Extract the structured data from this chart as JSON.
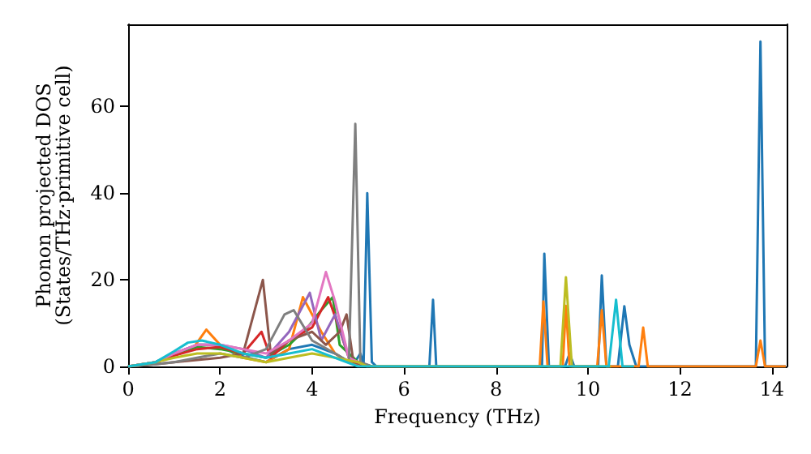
{
  "chart_data": {
    "type": "line",
    "xlabel": "Frequency (THz)",
    "ylabel": "Phonon projected DOS\n(States/THz·primitive cell)",
    "xlim": [
      0,
      14.32
    ],
    "xticks": [
      0,
      2,
      4,
      6,
      8,
      10,
      12,
      14
    ],
    "ylim": [
      0,
      79
    ],
    "yticks": [
      0,
      20,
      40,
      60
    ],
    "grid": false,
    "marker": "none",
    "line_style": "solid",
    "series": [
      {
        "color": "#1f77b4",
        "x": [
          0,
          0.5,
          1,
          1.5,
          2,
          2.3,
          2.6,
          3,
          3.5,
          4,
          4.5,
          4.9,
          5.05,
          5.12,
          5.2,
          5.3,
          5.4,
          6.55,
          6.63,
          6.7,
          9,
          9.05,
          9.15,
          9.5,
          9.6,
          9.7,
          10.22,
          10.3,
          10.4,
          10.65,
          10.79,
          10.9,
          11.05,
          13.65,
          13.75,
          13.85,
          14.3
        ],
        "values": [
          0,
          0.5,
          3,
          5,
          5,
          3,
          2,
          1,
          4,
          5,
          3,
          0.5,
          3,
          0.5,
          40,
          1,
          0,
          0,
          15.4,
          0,
          0,
          26,
          0,
          0,
          3,
          0,
          0,
          21,
          0,
          0,
          13.9,
          5,
          0,
          0,
          75,
          0,
          0
        ]
      },
      {
        "color": "#ff7f0e",
        "x": [
          0,
          0.5,
          1,
          1.4,
          1.7,
          2,
          2.5,
          3,
          3.5,
          3.8,
          4.2,
          4.5,
          4.8,
          5.3,
          8.95,
          9.03,
          9.12,
          9.45,
          9.52,
          9.6,
          10.2,
          10.3,
          10.4,
          11.1,
          11.2,
          11.3,
          13.65,
          13.75,
          13.85,
          14.3
        ],
        "values": [
          0,
          0.5,
          2.5,
          4,
          8.5,
          5,
          2,
          1,
          4,
          16,
          8,
          3,
          1,
          0,
          0,
          15,
          0,
          0,
          14,
          0,
          0,
          13,
          0,
          0,
          9,
          0,
          0,
          6,
          0,
          0
        ]
      },
      {
        "color": "#2ca02c",
        "x": [
          0,
          0.6,
          1,
          1.5,
          2,
          2.5,
          3,
          3.5,
          3.9,
          4.2,
          4.45,
          4.6,
          5,
          5.3
        ],
        "values": [
          0,
          1,
          3,
          4.5,
          4,
          3,
          2,
          5,
          9,
          13,
          16,
          5,
          1,
          0
        ]
      },
      {
        "color": "#d62728",
        "x": [
          0,
          0.6,
          1,
          1.5,
          2,
          2.5,
          2.9,
          3.1,
          3.5,
          4,
          4.35,
          4.55,
          4.8,
          5.2
        ],
        "values": [
          0,
          1,
          2.5,
          4,
          4.5,
          3,
          8,
          2,
          6,
          9,
          16,
          10,
          2,
          0
        ]
      },
      {
        "color": "#9467bd",
        "x": [
          0,
          0.6,
          1,
          1.5,
          2,
          2.5,
          3,
          3.5,
          3.95,
          4.2,
          4.5,
          4.8,
          5.2
        ],
        "values": [
          0,
          1,
          3,
          5,
          5,
          4,
          2,
          8,
          17,
          6,
          12,
          2,
          0
        ]
      },
      {
        "color": "#8c564b",
        "x": [
          0,
          0.6,
          1,
          1.5,
          2,
          2.5,
          2.93,
          3.1,
          3.5,
          4,
          4.3,
          4.6,
          4.75,
          4.9,
          5.2
        ],
        "values": [
          0,
          0.5,
          1,
          1.5,
          2,
          3,
          20,
          3,
          6,
          8,
          5,
          8,
          12,
          1,
          0
        ]
      },
      {
        "color": "#e377c2",
        "x": [
          0,
          0.6,
          1,
          1.5,
          2,
          2.5,
          3,
          3.5,
          4,
          4.3,
          4.5,
          4.8,
          5.2
        ],
        "values": [
          0,
          1,
          3,
          5,
          5,
          4,
          3,
          6,
          10,
          21.8,
          15,
          2,
          0
        ]
      },
      {
        "color": "#7f7f7f",
        "x": [
          0,
          0.6,
          1,
          1.5,
          2,
          2.5,
          3,
          3.4,
          3.6,
          4,
          4.5,
          4.8,
          4.94,
          5.05,
          5.3
        ],
        "values": [
          0,
          0.5,
          1,
          2,
          3,
          2,
          4,
          12,
          13,
          6,
          3,
          1,
          56,
          1,
          0
        ]
      },
      {
        "color": "#bcbd22",
        "x": [
          0,
          0.6,
          1,
          1.5,
          2,
          2.5,
          3,
          3.5,
          4,
          4.5,
          5,
          5.2,
          9.4,
          9.52,
          9.65,
          10.5
        ],
        "values": [
          0,
          1,
          2,
          3,
          3,
          2,
          1,
          2,
          3,
          2,
          1,
          0,
          0,
          20.6,
          0,
          0
        ]
      },
      {
        "color": "#17becf",
        "x": [
          0,
          0.6,
          1,
          1.3,
          1.6,
          2,
          2.5,
          3,
          3.5,
          4,
          4.5,
          5,
          10.45,
          10.61,
          10.75,
          11
        ],
        "values": [
          0,
          1,
          3.5,
          5.5,
          6,
          5,
          3,
          2,
          3,
          4,
          2,
          0,
          0,
          15.4,
          0,
          0
        ]
      }
    ]
  }
}
